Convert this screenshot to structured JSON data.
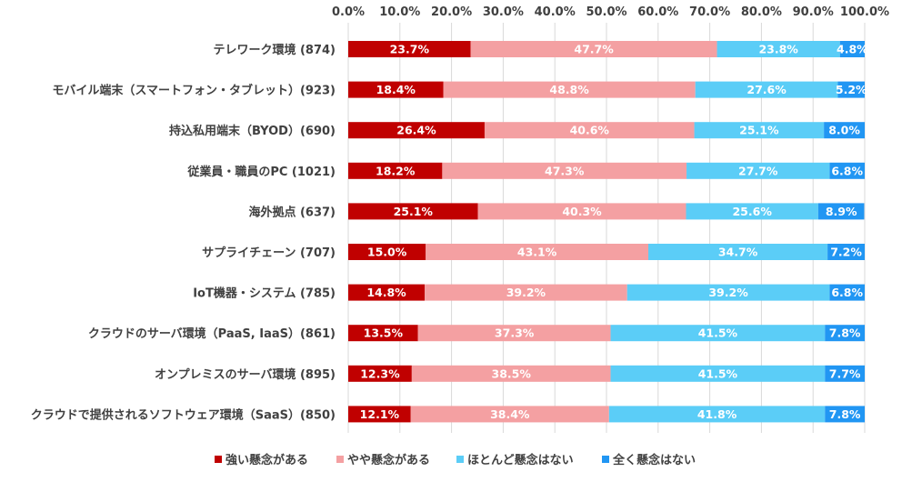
{
  "chart_data": {
    "type": "bar",
    "orientation": "horizontal",
    "stacked": true,
    "title": "",
    "xlabel": "",
    "ylabel": "",
    "xlim": [
      0,
      100
    ],
    "x_ticks": [
      "0.0%",
      "10.0%",
      "20.0%",
      "30.0%",
      "40.0%",
      "50.0%",
      "60.0%",
      "70.0%",
      "80.0%",
      "90.0%",
      "100.0%"
    ],
    "x_axis_position": "top",
    "grid": true,
    "legend_position": "bottom",
    "categories": [
      "テレワーク環境 (874)",
      "モバイル端末（スマートフォン・タブレット）(923)",
      "持込私用端末（BYOD）(690)",
      "従業員・職員のPC (1021)",
      "海外拠点 (637)",
      "サプライチェーン (707)",
      "IoT機器・システム (785)",
      "クラウドのサーバ環境（PaaS, IaaS）(861)",
      "オンプレミスのサーバ環境 (895)",
      "クラウドで提供されるソフトウェア環境（SaaS）(850)"
    ],
    "series": [
      {
        "name": "強い懸念がある",
        "color": "#c00000",
        "values": [
          23.7,
          18.4,
          26.4,
          18.2,
          25.1,
          15.0,
          14.8,
          13.5,
          12.3,
          12.1
        ],
        "labels": [
          "23.7%",
          "18.4%",
          "26.4%",
          "18.2%",
          "25.1%",
          "15.0%",
          "14.8%",
          "13.5%",
          "12.3%",
          "12.1%"
        ]
      },
      {
        "name": "やや懸念がある",
        "color": "#f4a0a2",
        "values": [
          47.7,
          48.8,
          40.6,
          47.3,
          40.3,
          43.1,
          39.2,
          37.3,
          38.5,
          38.4
        ],
        "labels": [
          "47.7%",
          "48.8%",
          "40.6%",
          "47.3%",
          "40.3%",
          "43.1%",
          "39.2%",
          "37.3%",
          "38.5%",
          "38.4%"
        ]
      },
      {
        "name": "ほとんど懸念はない",
        "color": "#5bcdf7",
        "values": [
          23.8,
          27.6,
          25.1,
          27.7,
          25.6,
          34.7,
          39.2,
          41.5,
          41.5,
          41.8
        ],
        "labels": [
          "23.8%",
          "27.6%",
          "25.1%",
          "27.7%",
          "25.6%",
          "34.7%",
          "39.2%",
          "41.5%",
          "41.5%",
          "41.8%"
        ]
      },
      {
        "name": "全く懸念はない",
        "color": "#2196f3",
        "values": [
          4.8,
          5.2,
          8.0,
          6.8,
          8.9,
          7.2,
          6.8,
          7.8,
          7.7,
          7.8
        ],
        "labels": [
          "4.8%",
          "5.2%",
          "8.0%",
          "6.8%",
          "8.9%",
          "7.2%",
          "6.8%",
          "7.8%",
          "7.7%",
          "7.8%"
        ]
      }
    ]
  }
}
